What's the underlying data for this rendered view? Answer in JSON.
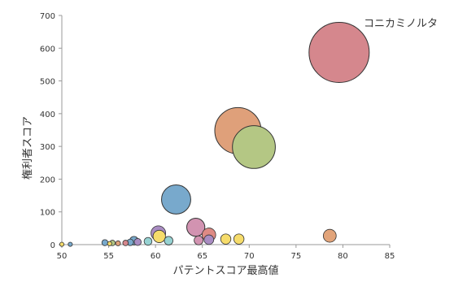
{
  "chart_data": {
    "type": "bubble",
    "title": "",
    "xlabel": "パテントスコア最高値",
    "ylabel": "権利者スコア",
    "xlim": [
      50,
      85
    ],
    "ylim": [
      0,
      700
    ],
    "xticks": [
      50,
      55,
      60,
      65,
      70,
      75,
      80,
      85
    ],
    "yticks": [
      0,
      100,
      200,
      300,
      400,
      500,
      600,
      700
    ],
    "grid": false,
    "annotations": [
      {
        "text": "コニカミノルタ",
        "x": 79.6,
        "y": 587
      }
    ],
    "series": [
      {
        "x": 79.6,
        "y": 587,
        "size": 587,
        "color": "#d5878d"
      },
      {
        "x": 68.8,
        "y": 348,
        "size": 348,
        "color": "#dfa07a"
      },
      {
        "x": 70.5,
        "y": 298,
        "size": 298,
        "color": "#b4c784"
      },
      {
        "x": 62.2,
        "y": 138,
        "size": 138,
        "color": "#78a9cc"
      },
      {
        "x": 60.3,
        "y": 35,
        "size": 35,
        "color": "#a98cc2"
      },
      {
        "x": 64.3,
        "y": 53,
        "size": 53,
        "color": "#d293b1"
      },
      {
        "x": 60.4,
        "y": 25,
        "size": 25,
        "color": "#f6dc6b"
      },
      {
        "x": 61.4,
        "y": 12,
        "size": 12,
        "color": "#96d2d2"
      },
      {
        "x": 65.7,
        "y": 30,
        "size": 30,
        "color": "#de8a84"
      },
      {
        "x": 78.6,
        "y": 27,
        "size": 27,
        "color": "#e2a47a"
      },
      {
        "x": 68.9,
        "y": 17,
        "size": 17,
        "color": "#f6dc6b"
      },
      {
        "x": 67.5,
        "y": 17,
        "size": 17,
        "color": "#f6dc6b"
      },
      {
        "x": 64.6,
        "y": 13,
        "size": 13,
        "color": "#d293b1"
      },
      {
        "x": 65.7,
        "y": 15,
        "size": 15,
        "color": "#a98cc2"
      },
      {
        "x": 57.7,
        "y": 12,
        "size": 12,
        "color": "#78a9cc"
      },
      {
        "x": 57.3,
        "y": 7,
        "size": 7,
        "color": "#78a9cc"
      },
      {
        "x": 58.1,
        "y": 8,
        "size": 8,
        "color": "#a98cc2"
      },
      {
        "x": 59.2,
        "y": 10,
        "size": 10,
        "color": "#96d2d2"
      },
      {
        "x": 54.6,
        "y": 6,
        "size": 6,
        "color": "#78a9cc"
      },
      {
        "x": 55.1,
        "y": 3,
        "size": 3,
        "color": "#f6dc6b"
      },
      {
        "x": 55.4,
        "y": 5,
        "size": 5,
        "color": "#b4c784"
      },
      {
        "x": 56.0,
        "y": 4,
        "size": 4,
        "color": "#dfa07a"
      },
      {
        "x": 56.8,
        "y": 5,
        "size": 5,
        "color": "#d5878d"
      },
      {
        "x": 50.0,
        "y": 1,
        "size": 1,
        "color": "#f6dc6b"
      },
      {
        "x": 50.9,
        "y": 1,
        "size": 1,
        "color": "#78a9cc"
      }
    ]
  }
}
